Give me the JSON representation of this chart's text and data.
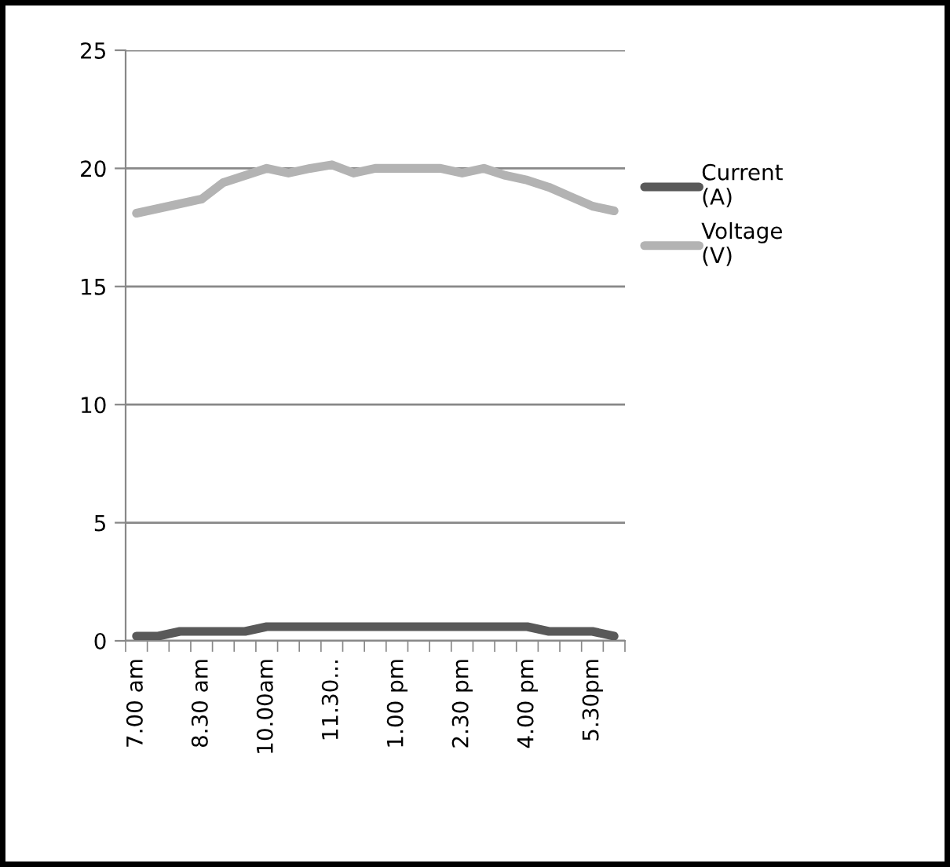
{
  "chart_data": {
    "type": "line",
    "categories": [
      "7.00 am",
      null,
      null,
      "8.30 am",
      null,
      null,
      "10.00am",
      null,
      null,
      "11.30...",
      null,
      null,
      "1.00 pm",
      null,
      null,
      "2.30 pm",
      null,
      null,
      "4.00 pm",
      null,
      null,
      "5.30pm",
      null
    ],
    "series": [
      {
        "name": "Current\n(A)",
        "color": "#595959",
        "values": [
          0.2,
          0.2,
          0.4,
          0.4,
          0.4,
          0.4,
          0.6,
          0.6,
          0.6,
          0.6,
          0.6,
          0.6,
          0.6,
          0.6,
          0.6,
          0.6,
          0.6,
          0.6,
          0.6,
          0.4,
          0.4,
          0.4,
          0.2
        ]
      },
      {
        "name": "Voltage\n(V)",
        "color": "#b3b3b3",
        "values": [
          18.1,
          18.3,
          18.5,
          18.7,
          19.4,
          19.7,
          20.0,
          19.8,
          20.0,
          20.15,
          19.8,
          20.0,
          20.0,
          20.0,
          20.0,
          19.8,
          20.0,
          19.7,
          19.5,
          19.2,
          18.8,
          18.4,
          18.2
        ]
      }
    ],
    "ylim": [
      0,
      25
    ],
    "yticks": [
      0,
      5,
      10,
      15,
      20,
      25
    ],
    "grid": "y",
    "legend": "right",
    "marker": "none",
    "line_style": "solid"
  }
}
